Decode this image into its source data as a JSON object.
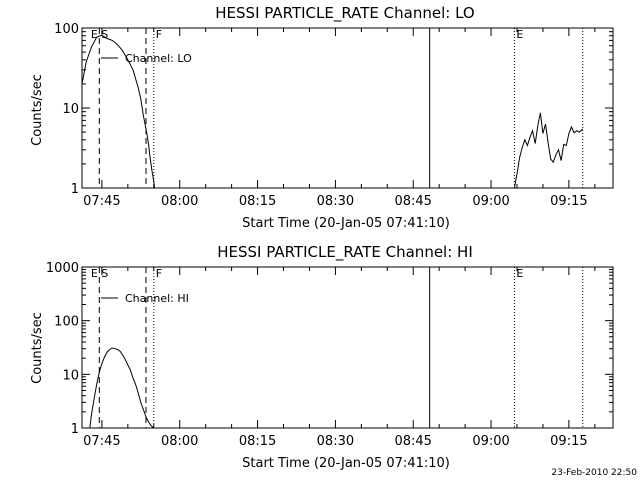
{
  "footer_timestamp": "23-Feb-2010 22:50",
  "chart_data": [
    {
      "type": "line",
      "title": "HESSI PARTICLE_RATE Channel: LO",
      "xlabel": "Start Time (20-Jan-05 07:41:10)",
      "ylabel": "Counts/sec",
      "yscale": "log",
      "ylim": [
        1,
        100
      ],
      "xlim": [
        "07:41:10",
        "09:23:30"
      ],
      "ytick_labels": [
        "1",
        "10",
        "100"
      ],
      "xtick_labels": [
        "07:45",
        "08:00",
        "08:15",
        "08:30",
        "08:45",
        "09:00",
        "09:15"
      ],
      "legend": {
        "entries": [
          "Channel: LO"
        ],
        "position": "top-left"
      },
      "markers": [
        {
          "label": "E",
          "time": "07:42:30",
          "style": "none"
        },
        {
          "label": "S",
          "time": "07:44:30",
          "style": "dashed"
        },
        {
          "label": "",
          "time": "07:53:30",
          "style": "dashed"
        },
        {
          "label": "F",
          "time": "07:55:00",
          "style": "dotted"
        },
        {
          "label": "",
          "time": "08:48:10",
          "style": "solid"
        },
        {
          "label": "E",
          "time": "09:04:30",
          "style": "dotted"
        },
        {
          "label": "",
          "time": "09:17:40",
          "style": "dotted"
        }
      ],
      "series": [
        {
          "x": [
            "07:41:10",
            "07:42:00",
            "07:43:00",
            "07:44:00",
            "07:45:00",
            "07:46:00",
            "07:47:00",
            "07:48:00",
            "07:49:00",
            "07:50:00",
            "07:51:00",
            "07:52:00",
            "07:52:30",
            "07:53:00",
            "07:53:30",
            "07:54:00",
            "07:54:20",
            "07:54:40",
            "07:55:00",
            "07:55:10"
          ],
          "y": [
            20,
            38,
            58,
            77,
            81,
            74,
            70,
            62,
            52,
            40,
            30,
            18,
            13,
            8,
            5.5,
            3.5,
            2.3,
            1.6,
            1.2,
            1
          ]
        },
        {
          "x": [
            "09:04:30",
            "09:05:00",
            "09:05:30",
            "09:06:00",
            "09:06:30",
            "09:07:00",
            "09:07:30",
            "09:08:00",
            "09:08:30",
            "09:09:00",
            "09:09:30",
            "09:10:00",
            "09:10:30",
            "09:11:00",
            "09:11:30",
            "09:12:00",
            "09:12:30",
            "09:13:00",
            "09:13:30",
            "09:14:00",
            "09:14:30",
            "09:15:00",
            "09:15:30",
            "09:16:00",
            "09:16:30",
            "09:17:00",
            "09:17:40"
          ],
          "y": [
            1,
            1.5,
            2.4,
            3.2,
            4.0,
            3.4,
            4.3,
            5.2,
            3.6,
            6.0,
            8.7,
            4.8,
            6.3,
            3.7,
            2.3,
            2.1,
            2.6,
            3.0,
            2.2,
            3.5,
            3.4,
            4.8,
            5.8,
            4.9,
            5.2,
            5.0,
            5.5
          ]
        }
      ]
    },
    {
      "type": "line",
      "title": "HESSI PARTICLE_RATE Channel: HI",
      "xlabel": "Start Time (20-Jan-05 07:41:10)",
      "ylabel": "Counts/sec",
      "yscale": "log",
      "ylim": [
        1,
        1000
      ],
      "xlim": [
        "07:41:10",
        "09:23:30"
      ],
      "ytick_labels": [
        "1",
        "10",
        "100",
        "1000"
      ],
      "xtick_labels": [
        "07:45",
        "08:00",
        "08:15",
        "08:30",
        "08:45",
        "09:00",
        "09:15"
      ],
      "legend": {
        "entries": [
          "Channel: HI"
        ],
        "position": "top-left"
      },
      "markers": [
        {
          "label": "E",
          "time": "07:42:30",
          "style": "none"
        },
        {
          "label": "S",
          "time": "07:44:30",
          "style": "dashed"
        },
        {
          "label": "",
          "time": "07:53:30",
          "style": "dashed"
        },
        {
          "label": "F",
          "time": "07:55:00",
          "style": "dotted"
        },
        {
          "label": "",
          "time": "08:48:10",
          "style": "solid"
        },
        {
          "label": "E",
          "time": "09:04:30",
          "style": "dotted"
        },
        {
          "label": "",
          "time": "09:17:40",
          "style": "dotted"
        }
      ],
      "series": [
        {
          "x": [
            "07:42:40",
            "07:43:00",
            "07:43:30",
            "07:44:00",
            "07:44:30",
            "07:45:00",
            "07:45:30",
            "07:46:00",
            "07:46:30",
            "07:47:00",
            "07:47:30",
            "07:48:00",
            "07:48:30",
            "07:49:00",
            "07:49:30",
            "07:50:00",
            "07:50:30",
            "07:51:00",
            "07:51:30",
            "07:52:00",
            "07:52:30",
            "07:53:00",
            "07:53:30",
            "07:54:00",
            "07:54:30",
            "07:55:00"
          ],
          "y": [
            1,
            1.8,
            3.5,
            6.5,
            11,
            16,
            21,
            26,
            29,
            31,
            30,
            29,
            27,
            23,
            19,
            15,
            12,
            8.5,
            6.5,
            4.5,
            3,
            2.2,
            1.6,
            1.3,
            1.1,
            1
          ]
        }
      ]
    }
  ]
}
